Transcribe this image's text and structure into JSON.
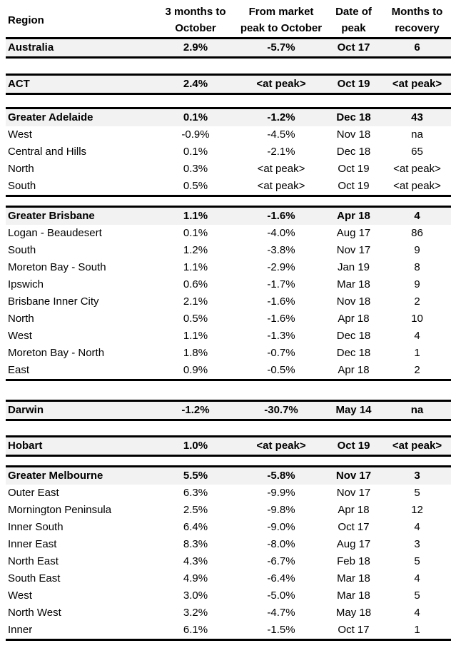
{
  "page": {
    "background_color": "#ffffff",
    "text_color": "#000000",
    "shaded_row_color": "#f2f2f2",
    "border_color": "#000000"
  },
  "table": {
    "columns": [
      {
        "id": "region",
        "line1": "Region",
        "line2": ""
      },
      {
        "id": "three_months",
        "line1": "3 months to",
        "line2": "October"
      },
      {
        "id": "from_peak",
        "line1": "From market",
        "line2": "peak to October"
      },
      {
        "id": "date_of_peak",
        "line1": "Date of",
        "line2": "peak"
      },
      {
        "id": "months_to_recovery",
        "line1": "Months to",
        "line2": "recovery"
      }
    ],
    "sections": [
      {
        "name": "Australia",
        "rows": [
          {
            "region": "Australia",
            "values": [
              "2.9%",
              "-5.7%",
              "Oct 17",
              "6"
            ],
            "emphasis": true
          }
        ]
      },
      {
        "name": "ACT",
        "rows": [
          {
            "region": "ACT",
            "values": [
              "2.4%",
              "<at peak>",
              "Oct 19",
              "<at peak>"
            ],
            "emphasis": true
          }
        ]
      },
      {
        "name": "Greater Adelaide",
        "rows": [
          {
            "region": "Greater Adelaide",
            "values": [
              "0.1%",
              "-1.2%",
              "Dec 18",
              "43"
            ],
            "emphasis": true
          },
          {
            "region": "West",
            "values": [
              "-0.9%",
              "-4.5%",
              "Nov 18",
              "na"
            ],
            "emphasis": false
          },
          {
            "region": "Central and Hills",
            "values": [
              "0.1%",
              "-2.1%",
              "Dec 18",
              "65"
            ],
            "emphasis": false
          },
          {
            "region": "North",
            "values": [
              "0.3%",
              "<at peak>",
              "Oct 19",
              "<at peak>"
            ],
            "emphasis": false
          },
          {
            "region": "South",
            "values": [
              "0.5%",
              "<at peak>",
              "Oct 19",
              "<at peak>"
            ],
            "emphasis": false
          }
        ]
      },
      {
        "name": "Greater Brisbane",
        "rows": [
          {
            "region": "Greater Brisbane",
            "values": [
              "1.1%",
              "-1.6%",
              "Apr 18",
              "4"
            ],
            "emphasis": true
          },
          {
            "region": "Logan - Beaudesert",
            "values": [
              "0.1%",
              "-4.0%",
              "Aug 17",
              "86"
            ],
            "emphasis": false
          },
          {
            "region": "South",
            "values": [
              "1.2%",
              "-3.8%",
              "Nov 17",
              "9"
            ],
            "emphasis": false
          },
          {
            "region": "Moreton Bay - South",
            "values": [
              "1.1%",
              "-2.9%",
              "Jan 19",
              "8"
            ],
            "emphasis": false
          },
          {
            "region": "Ipswich",
            "values": [
              "0.6%",
              "-1.7%",
              "Mar 18",
              "9"
            ],
            "emphasis": false
          },
          {
            "region": "Brisbane Inner City",
            "values": [
              "2.1%",
              "-1.6%",
              "Nov 18",
              "2"
            ],
            "emphasis": false
          },
          {
            "region": "North",
            "values": [
              "0.5%",
              "-1.6%",
              "Apr 18",
              "10"
            ],
            "emphasis": false
          },
          {
            "region": "West",
            "values": [
              "1.1%",
              "-1.3%",
              "Dec 18",
              "4"
            ],
            "emphasis": false
          },
          {
            "region": "Moreton Bay - North",
            "values": [
              "1.8%",
              "-0.7%",
              "Dec 18",
              "1"
            ],
            "emphasis": false
          },
          {
            "region": "East",
            "values": [
              "0.9%",
              "-0.5%",
              "Apr 18",
              "2"
            ],
            "emphasis": false
          }
        ]
      },
      {
        "name": "Darwin",
        "rows": [
          {
            "region": "Darwin",
            "values": [
              "-1.2%",
              "-30.7%",
              "May 14",
              "na"
            ],
            "emphasis": true
          }
        ]
      },
      {
        "name": "Hobart",
        "rows": [
          {
            "region": "Hobart",
            "values": [
              "1.0%",
              "<at peak>",
              "Oct 19",
              "<at peak>"
            ],
            "emphasis": true
          }
        ]
      },
      {
        "name": "Greater Melbourne",
        "rows": [
          {
            "region": "Greater Melbourne",
            "values": [
              "5.5%",
              "-5.8%",
              "Nov 17",
              "3"
            ],
            "emphasis": true
          },
          {
            "region": "Outer East",
            "values": [
              "6.3%",
              "-9.9%",
              "Nov 17",
              "5"
            ],
            "emphasis": false
          },
          {
            "region": "Mornington Peninsula",
            "values": [
              "2.5%",
              "-9.8%",
              "Apr 18",
              "12"
            ],
            "emphasis": false
          },
          {
            "region": "Inner South",
            "values": [
              "6.4%",
              "-9.0%",
              "Oct 17",
              "4"
            ],
            "emphasis": false
          },
          {
            "region": "Inner East",
            "values": [
              "8.3%",
              "-8.0%",
              "Aug 17",
              "3"
            ],
            "emphasis": false
          },
          {
            "region": "North East",
            "values": [
              "4.3%",
              "-6.7%",
              "Feb 18",
              "5"
            ],
            "emphasis": false
          },
          {
            "region": "South East",
            "values": [
              "4.9%",
              "-6.4%",
              "Mar 18",
              "4"
            ],
            "emphasis": false
          },
          {
            "region": "West",
            "values": [
              "3.0%",
              "-5.0%",
              "Mar 18",
              "5"
            ],
            "emphasis": false
          },
          {
            "region": "North West",
            "values": [
              "3.2%",
              "-4.7%",
              "May 18",
              "4"
            ],
            "emphasis": false
          },
          {
            "region": "Inner",
            "values": [
              "6.1%",
              "-1.5%",
              "Oct 17",
              "1"
            ],
            "emphasis": false
          }
        ]
      }
    ]
  }
}
